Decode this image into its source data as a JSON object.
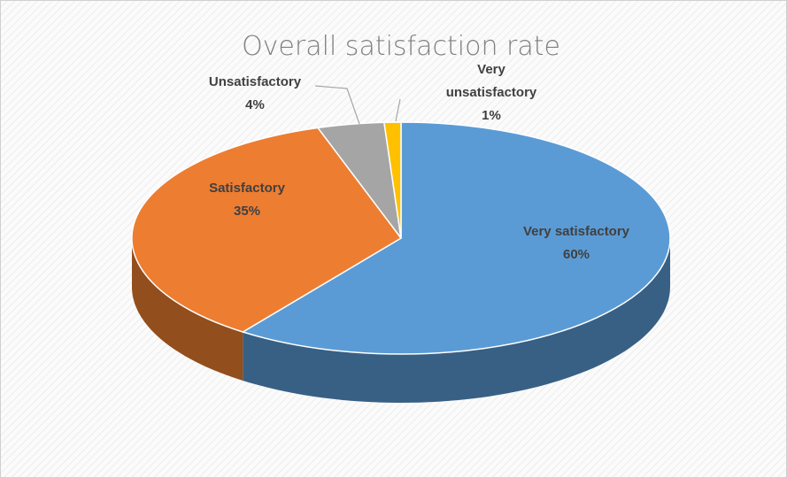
{
  "chart_data": {
    "type": "pie3d",
    "title": "Overall satisfaction rate",
    "categories": [
      "Very satisfactory",
      "Satisfactory",
      "Unsatisfactory",
      "Very unsatisfactory"
    ],
    "values": [
      60,
      35,
      4,
      1
    ],
    "value_labels": [
      "60%",
      "35%",
      "4%",
      "1%"
    ],
    "colors": [
      "#5b9bd5",
      "#ed7d31",
      "#a5a5a5",
      "#ffc000"
    ]
  }
}
